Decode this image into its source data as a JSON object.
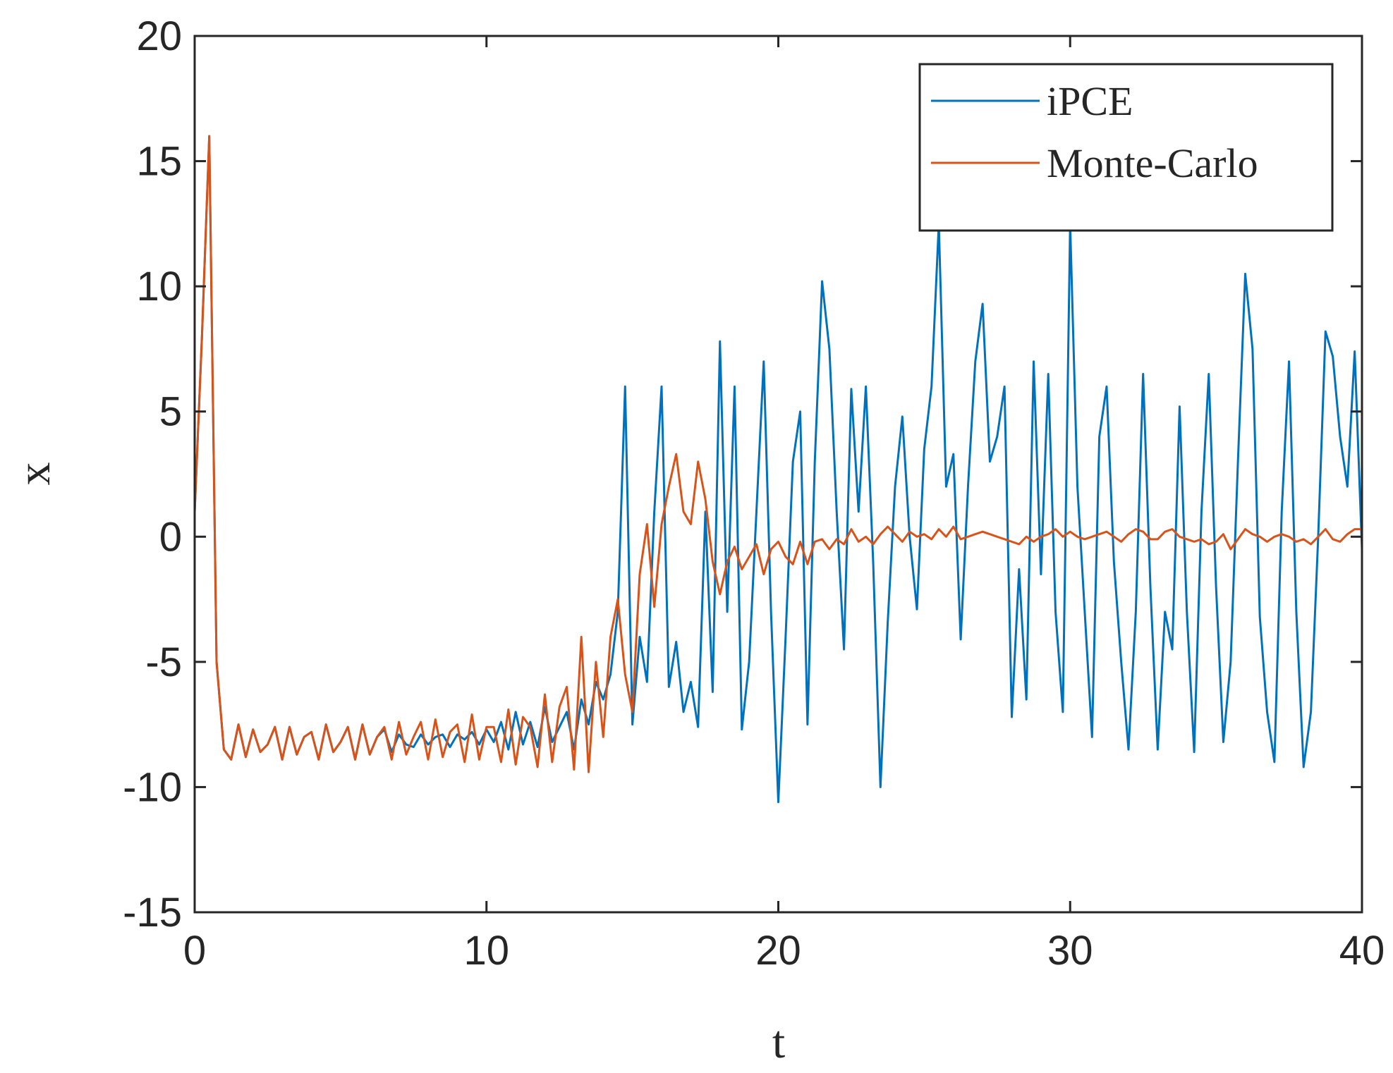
{
  "chart_data": {
    "type": "line",
    "xlabel": "t",
    "ylabel": "x",
    "xlim": [
      0,
      40
    ],
    "ylim": [
      -15,
      20
    ],
    "xticks": [
      0,
      10,
      20,
      30,
      40
    ],
    "yticks": [
      -15,
      -10,
      -5,
      0,
      5,
      10,
      15,
      20
    ],
    "legend": "northeast",
    "box": true,
    "x": [
      0,
      0.25,
      0.5,
      0.75,
      1,
      1.25,
      1.5,
      1.75,
      2,
      2.25,
      2.5,
      2.75,
      3,
      3.25,
      3.5,
      3.75,
      4,
      4.25,
      4.5,
      4.75,
      5,
      5.25,
      5.5,
      5.75,
      6,
      6.25,
      6.5,
      6.75,
      7,
      7.25,
      7.5,
      7.75,
      8,
      8.25,
      8.5,
      8.75,
      9,
      9.25,
      9.5,
      9.75,
      10,
      10.25,
      10.5,
      10.75,
      11,
      11.25,
      11.5,
      11.75,
      12,
      12.25,
      12.5,
      12.75,
      13,
      13.25,
      13.5,
      13.75,
      14,
      14.25,
      14.5,
      14.75,
      15,
      15.25,
      15.5,
      15.75,
      16,
      16.25,
      16.5,
      16.75,
      17,
      17.25,
      17.5,
      17.75,
      18,
      18.25,
      18.5,
      18.75,
      19,
      19.25,
      19.5,
      19.75,
      20,
      20.25,
      20.5,
      20.75,
      21,
      21.25,
      21.5,
      21.75,
      22,
      22.25,
      22.5,
      22.75,
      23,
      23.25,
      23.5,
      23.75,
      24,
      24.25,
      24.5,
      24.75,
      25,
      25.25,
      25.5,
      25.75,
      26,
      26.25,
      26.5,
      26.75,
      27,
      27.25,
      27.5,
      27.75,
      28,
      28.25,
      28.5,
      28.75,
      29,
      29.25,
      29.5,
      29.75,
      30,
      30.25,
      30.5,
      30.75,
      31,
      31.25,
      31.5,
      31.75,
      32,
      32.25,
      32.5,
      32.75,
      33,
      33.25,
      33.5,
      33.75,
      34,
      34.25,
      34.5,
      34.75,
      35,
      35.25,
      35.5,
      35.75,
      36,
      36.25,
      36.5,
      36.75,
      37,
      37.25,
      37.5,
      37.75,
      38,
      38.25,
      38.5,
      38.75,
      39,
      39.25,
      39.5,
      39.75,
      40
    ],
    "series": [
      {
        "name": "iPCE",
        "color": "#0072bd",
        "values": [
          1,
          8,
          16,
          -5,
          -8.5,
          -8.9,
          -7.5,
          -8.8,
          -7.7,
          -8.6,
          -8.3,
          -7.6,
          -8.9,
          -7.6,
          -8.7,
          -8.0,
          -7.8,
          -8.9,
          -7.5,
          -8.6,
          -8.2,
          -7.6,
          -8.9,
          -7.5,
          -8.7,
          -8.0,
          -7.7,
          -8.6,
          -7.9,
          -8.3,
          -8.4,
          -7.9,
          -8.3,
          -8.0,
          -7.9,
          -8.4,
          -7.9,
          -8.1,
          -7.8,
          -8.3,
          -7.7,
          -8.2,
          -7.4,
          -8.5,
          -7.0,
          -8.3,
          -7.4,
          -8.4,
          -6.8,
          -8.2,
          -7.6,
          -7.0,
          -8.5,
          -6.5,
          -7.5,
          -5.8,
          -6.5,
          -5.5,
          -3,
          6,
          -7.5,
          -4,
          -5.8,
          1,
          6,
          -6,
          -4.2,
          -7,
          -5.8,
          -7.6,
          1,
          -6.2,
          7.8,
          -3,
          6,
          -7.7,
          -5,
          1,
          7,
          -3,
          -10.6,
          -4,
          3,
          5,
          -7.5,
          3,
          10.2,
          7.5,
          1,
          -4.5,
          5.9,
          1,
          6,
          -1,
          -10,
          -3.4,
          2,
          4.8,
          0,
          -2.9,
          3.5,
          6,
          12.5,
          2,
          3.3,
          -4.1,
          2,
          7,
          9.3,
          3,
          4,
          6,
          -7.2,
          -1.3,
          -6.5,
          7,
          -1.5,
          6.5,
          -3,
          -7,
          12.5,
          2,
          -3,
          -8,
          4,
          6,
          -1,
          -5,
          -8.5,
          -3,
          6.5,
          -2,
          -8.5,
          -3,
          -4.5,
          5.2,
          -3,
          -8.6,
          1,
          6.5,
          -2,
          -8.2,
          -5,
          3,
          10.5,
          7.5,
          -3.2,
          -7,
          -9,
          1,
          7,
          -3,
          -9.2,
          -7,
          0,
          8.2,
          7.2,
          4,
          2,
          7.4,
          -0.5
        ]
      },
      {
        "name": "Monte-Carlo",
        "color": "#d95319",
        "values": [
          1,
          8,
          16,
          -5,
          -8.5,
          -8.9,
          -7.5,
          -8.8,
          -7.7,
          -8.6,
          -8.3,
          -7.6,
          -8.9,
          -7.6,
          -8.7,
          -8.0,
          -7.8,
          -8.9,
          -7.5,
          -8.6,
          -8.2,
          -7.6,
          -8.9,
          -7.5,
          -8.7,
          -8.0,
          -7.6,
          -8.9,
          -7.4,
          -8.7,
          -8.0,
          -7.4,
          -8.9,
          -7.3,
          -8.8,
          -7.8,
          -7.5,
          -9.0,
          -7.1,
          -8.9,
          -7.6,
          -7.6,
          -9.0,
          -6.9,
          -9.1,
          -7.2,
          -7.6,
          -9.2,
          -6.3,
          -9.0,
          -6.8,
          -6,
          -9.3,
          -4,
          -9.4,
          -5,
          -8,
          -4,
          -2.5,
          -5.5,
          -7,
          -1.5,
          0.5,
          -2.8,
          0.5,
          2,
          3.3,
          1,
          0.5,
          3,
          1.5,
          -1,
          -2.3,
          -1,
          -0.4,
          -1.3,
          -0.8,
          -0.3,
          -1.5,
          -0.5,
          -0.2,
          -0.8,
          -1.1,
          -0.2,
          -1.1,
          -0.2,
          -0.1,
          -0.5,
          -0.1,
          -0.3,
          0.3,
          -0.2,
          0,
          -0.3,
          0.1,
          0.4,
          0.1,
          -0.2,
          0.2,
          0,
          0.1,
          -0.1,
          0.3,
          0,
          0.4,
          -0.1,
          0,
          0.1,
          0.2,
          0.1,
          0,
          -0.1,
          -0.2,
          -0.3,
          0,
          -0.2,
          0,
          0.1,
          0.3,
          0,
          0.2,
          0,
          -0.1,
          0,
          0.1,
          0.2,
          0,
          -0.2,
          0.1,
          0.3,
          0.2,
          -0.1,
          -0.1,
          0.2,
          0.3,
          0,
          -0.1,
          -0.2,
          -0.1,
          -0.3,
          -0.2,
          0.1,
          -0.5,
          -0.1,
          0.3,
          0.1,
          0,
          -0.2,
          0,
          0.1,
          0,
          -0.2,
          -0.1,
          -0.3,
          0,
          0.3,
          -0.1,
          -0.2,
          0.1,
          0.3,
          0.3
        ]
      }
    ]
  }
}
